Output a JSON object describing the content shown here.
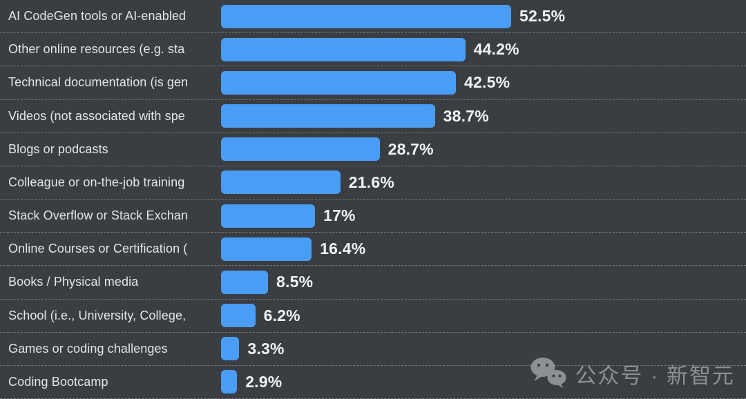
{
  "chart_data": {
    "type": "bar",
    "orientation": "horizontal",
    "title": "",
    "xlabel": "",
    "ylabel": "",
    "xlim": [
      0,
      52.5
    ],
    "grid": "dashed-row-separators",
    "legend": "none",
    "bar_color": "#4a9df4",
    "background_color": "#3a3d42",
    "label_color": "#e4e6e8",
    "value_color": "#f2f3f5",
    "separator_color": "#a8acb2",
    "categories": [
      "AI CodeGen tools or AI-enabled",
      "Other online resources (e.g. sta",
      "Technical documentation (is gen",
      "Videos (not associated with spe",
      "Blogs or podcasts",
      "Colleague or on-the-job training",
      "Stack Overflow or Stack Exchan",
      "Online Courses or Certification (",
      "Books / Physical media",
      "School (i.e., University, College,",
      "Games or coding challenges",
      "Coding Bootcamp"
    ],
    "values": [
      52.5,
      44.2,
      42.5,
      38.7,
      28.7,
      21.6,
      17,
      16.4,
      8.5,
      6.2,
      3.3,
      2.9
    ],
    "value_labels": [
      "52.5%",
      "44.2%",
      "42.5%",
      "38.7%",
      "28.7%",
      "21.6%",
      "17%",
      "16.4%",
      "8.5%",
      "6.2%",
      "3.3%",
      "2.9%"
    ]
  },
  "watermark": {
    "icon": "wechat-icon",
    "text": "公众号 · 新智元",
    "color": "#9b9ea3"
  }
}
